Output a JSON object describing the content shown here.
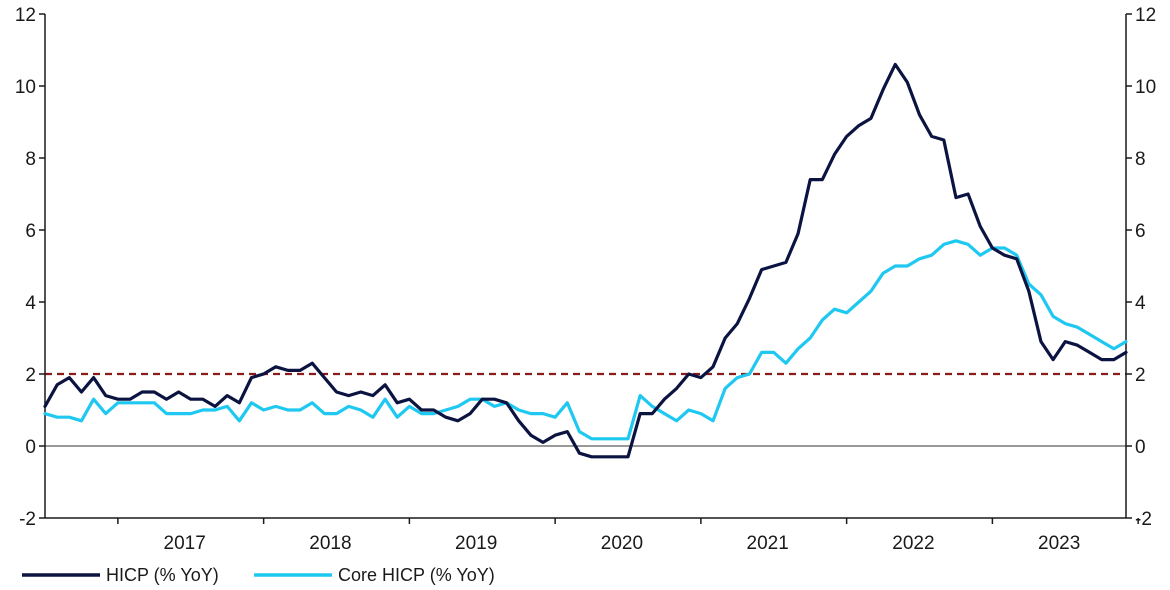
{
  "chart_data": {
    "type": "line",
    "title": "",
    "xlabel": "",
    "ylabel": "",
    "ylim": [
      -2,
      12
    ],
    "yticks": [
      -2,
      0,
      2,
      4,
      6,
      8,
      10,
      12
    ],
    "y_tick_labels": [
      "-2",
      "0",
      "2",
      "4",
      "6",
      "8",
      "10",
      "12"
    ],
    "x_start": "2016-07",
    "x_end": "2023-11",
    "year_labels": [
      "2017",
      "2018",
      "2019",
      "2020",
      "2021",
      "2022",
      "2023"
    ],
    "reference_line": {
      "value": 2,
      "color": "#8b1a1a",
      "style": "dashed"
    },
    "zero_line": true,
    "legend_position": "bottom-left",
    "series": [
      {
        "name": "HICP (% YoY)",
        "color": "#0b1340",
        "values": [
          1.1,
          1.7,
          1.9,
          1.5,
          1.9,
          1.4,
          1.3,
          1.3,
          1.5,
          1.5,
          1.3,
          1.5,
          1.3,
          1.3,
          1.1,
          1.4,
          1.2,
          1.9,
          2.0,
          2.2,
          2.1,
          2.1,
          2.3,
          1.9,
          1.5,
          1.4,
          1.5,
          1.4,
          1.7,
          1.2,
          1.3,
          1.0,
          1.0,
          0.8,
          0.7,
          0.9,
          1.3,
          1.3,
          1.2,
          0.7,
          0.3,
          0.1,
          0.3,
          0.4,
          -0.2,
          -0.3,
          -0.3,
          -0.3,
          -0.3,
          0.9,
          0.9,
          1.3,
          1.6,
          2.0,
          1.9,
          2.2,
          3.0,
          3.4,
          4.1,
          4.9,
          5.0,
          5.1,
          5.9,
          7.4,
          7.4,
          8.1,
          8.6,
          8.9,
          9.1,
          9.9,
          10.6,
          10.1,
          9.2,
          8.6,
          8.5,
          6.9,
          7.0,
          6.1,
          5.5,
          5.3,
          5.2,
          4.3,
          2.9,
          2.4,
          2.9,
          2.8,
          2.6,
          2.4,
          2.4,
          2.6
        ]
      },
      {
        "name": "Core HICP (% YoY)",
        "color": "#1ec8f0",
        "values": [
          0.9,
          0.8,
          0.8,
          0.7,
          1.3,
          0.9,
          1.2,
          1.2,
          1.2,
          1.2,
          0.9,
          0.9,
          0.9,
          1.0,
          1.0,
          1.1,
          0.7,
          1.2,
          1.0,
          1.1,
          1.0,
          1.0,
          1.2,
          0.9,
          0.9,
          1.1,
          1.0,
          0.8,
          1.3,
          0.8,
          1.1,
          0.9,
          0.9,
          1.0,
          1.1,
          1.3,
          1.3,
          1.1,
          1.2,
          1.0,
          0.9,
          0.9,
          0.8,
          1.2,
          0.4,
          0.2,
          0.2,
          0.2,
          0.2,
          1.4,
          1.1,
          0.9,
          0.7,
          1.0,
          0.9,
          0.7,
          1.6,
          1.9,
          2.0,
          2.6,
          2.6,
          2.3,
          2.7,
          3.0,
          3.5,
          3.8,
          3.7,
          4.0,
          4.3,
          4.8,
          5.0,
          5.0,
          5.2,
          5.3,
          5.6,
          5.7,
          5.6,
          5.3,
          5.5,
          5.5,
          5.3,
          4.5,
          4.2,
          3.6,
          3.4,
          3.3,
          3.1,
          2.9,
          2.7,
          2.9
        ]
      }
    ]
  }
}
